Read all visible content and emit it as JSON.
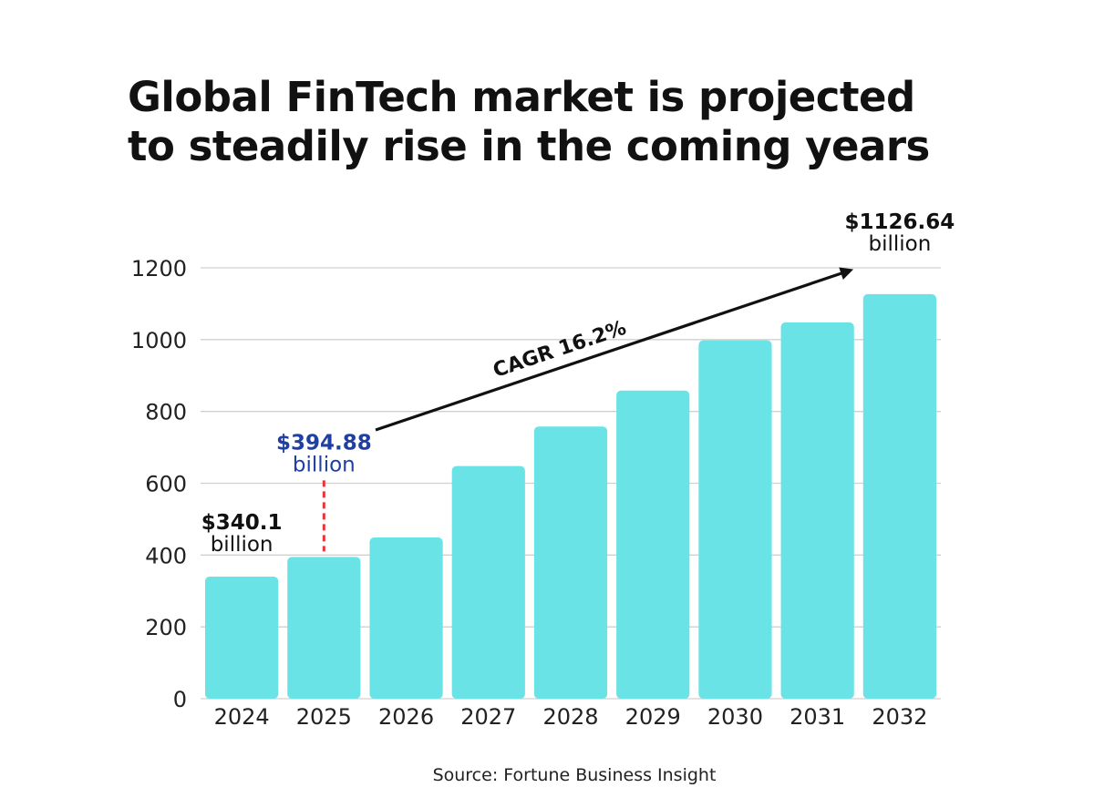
{
  "title": {
    "line1": "Global FinTech market is projected",
    "line2": "to steadily rise in the coming years"
  },
  "source": "Source: Fortune Business Insight",
  "colors": {
    "bar": "#6ae3e6",
    "grid": "#d0d0d0",
    "text": "#111111",
    "highlight": "#1f3fa3",
    "dash": "#e8333a"
  },
  "chart_data": {
    "type": "bar",
    "categories": [
      "2024",
      "2025",
      "2026",
      "2027",
      "2028",
      "2029",
      "2030",
      "2031",
      "2032"
    ],
    "values": [
      340.1,
      394.88,
      449,
      648,
      758,
      858,
      998,
      1048,
      1126.64
    ],
    "ylim": [
      0,
      1200
    ],
    "yticks": [
      0,
      200,
      400,
      600,
      800,
      1000,
      1200
    ],
    "grid": true,
    "annotations": [
      {
        "category": "2024",
        "value_label": "$340.1",
        "unit_label": "billion",
        "style": "bold"
      },
      {
        "category": "2025",
        "value_label": "$394.88",
        "unit_label": "billion",
        "style": "highlight"
      },
      {
        "category": "2032",
        "value_label": "$1126.64",
        "unit_label": "billion",
        "style": "bold"
      }
    ],
    "trend_label": "CAGR 16.2%"
  }
}
